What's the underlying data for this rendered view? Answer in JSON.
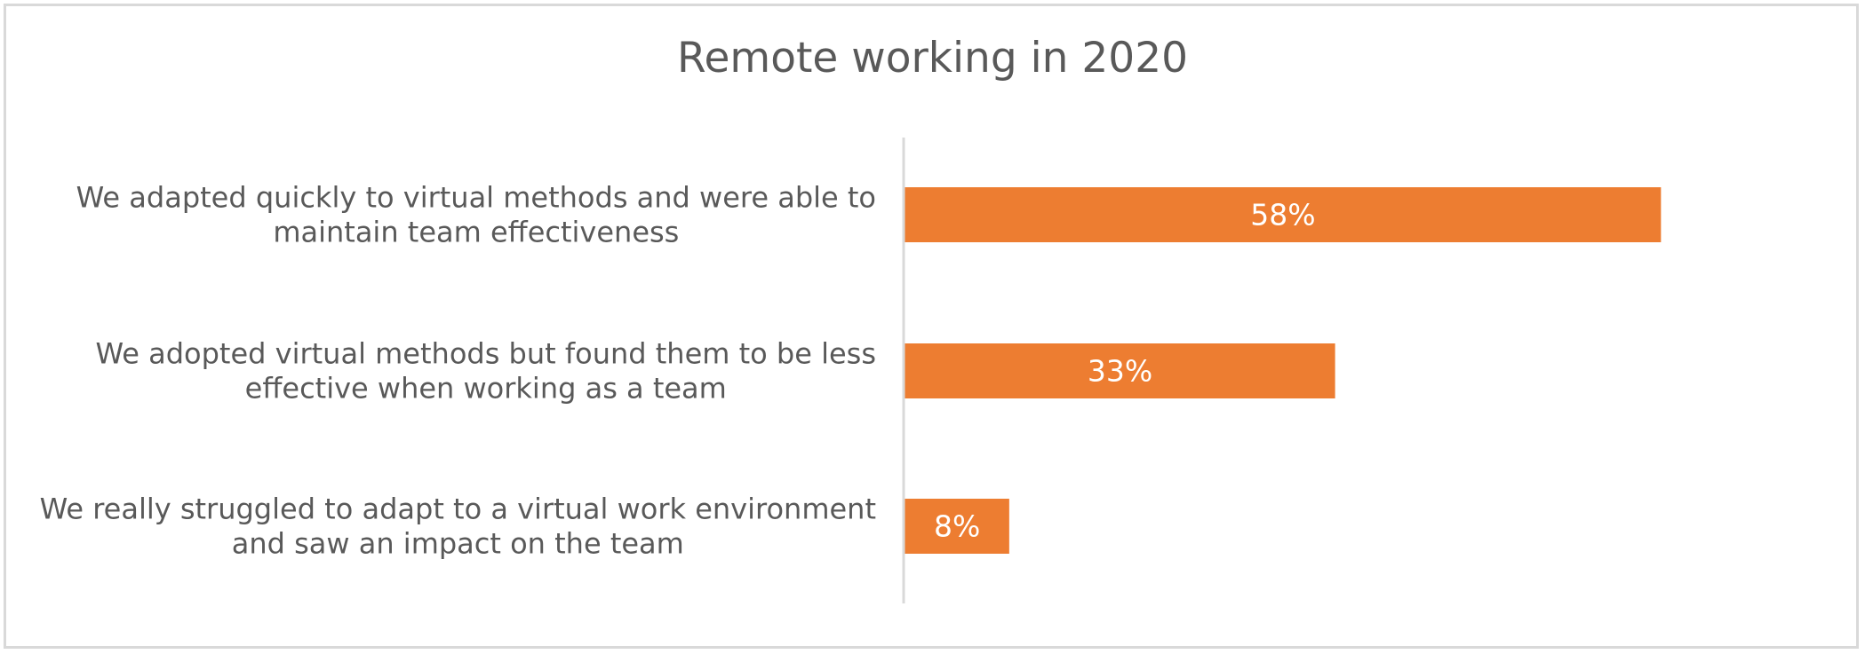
{
  "chart_data": {
    "type": "bar",
    "orientation": "horizontal",
    "title": "Remote working in 2020",
    "categories": [
      [
        "We adapted quickly to virtual methods and were able to",
        "maintain team effectiveness"
      ],
      [
        "We adopted virtual methods but found them to be less",
        "effective when working as a team"
      ],
      [
        "We really struggled to adapt to a virtual work environment",
        "and saw an impact on the team"
      ]
    ],
    "values": [
      58,
      33,
      8
    ],
    "data_labels": [
      "58%",
      "33%",
      "8%"
    ],
    "bar_color": "#ed7d31",
    "axis_color": "#d9d9d9",
    "xlim": [
      0,
      70
    ],
    "grid": false,
    "legend": "none"
  }
}
